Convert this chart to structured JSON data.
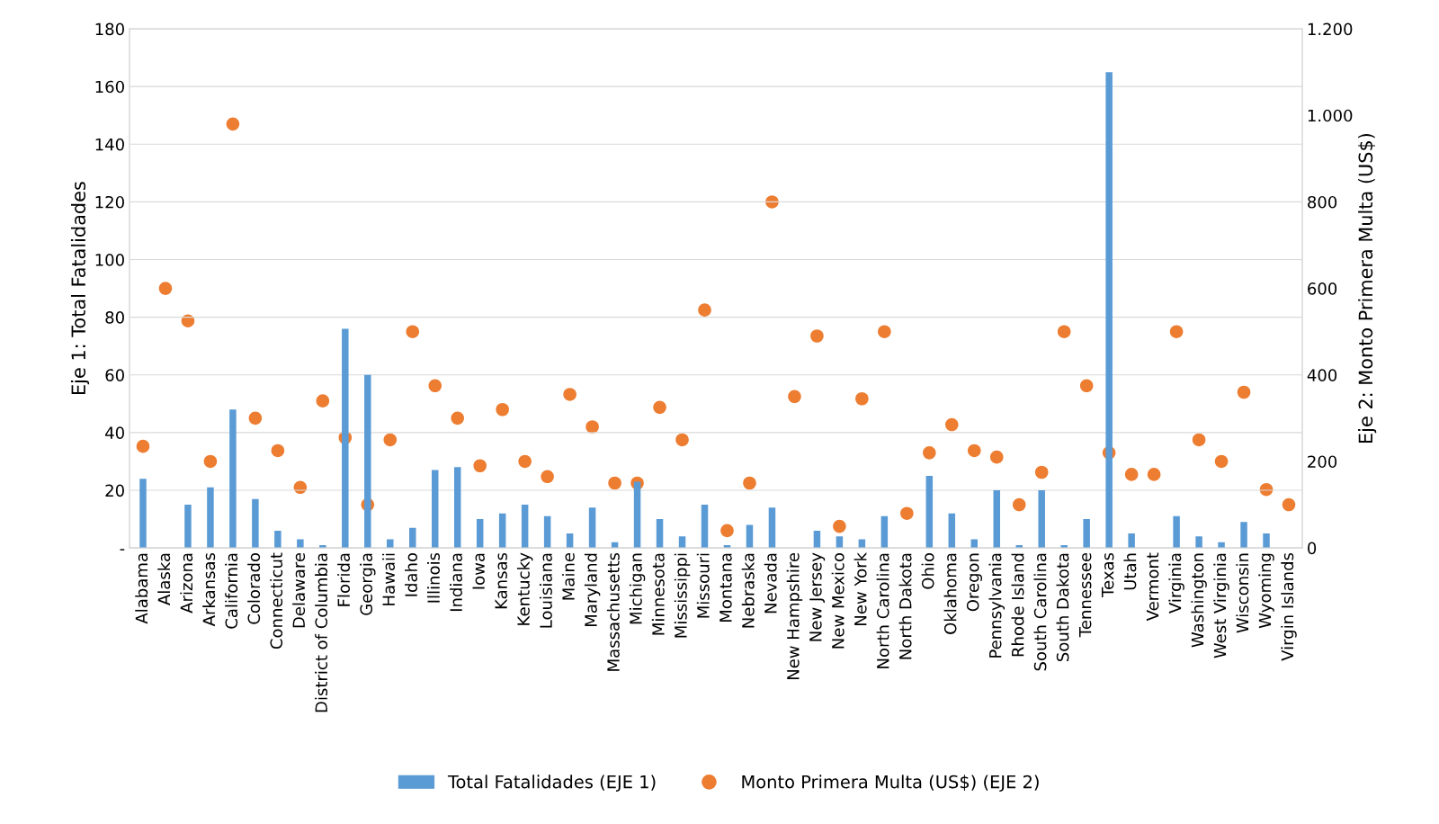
{
  "chart_data": {
    "type": "bar",
    "ylabel": "Eje 1: Total Fatalidades",
    "y2label": "Eje 2: Monto Primera Multa (US$)",
    "categories": [
      "Alabama",
      "Alaska",
      "Arizona",
      "Arkansas",
      "California",
      "Colorado",
      "Connecticut",
      "Delaware",
      "District of Columbia",
      "Florida",
      "Georgia",
      "Hawaii",
      "Idaho",
      "Illinois",
      "Indiana",
      "Iowa",
      "Kansas",
      "Kentucky",
      "Louisiana",
      "Maine",
      "Maryland",
      "Massachusetts",
      "Michigan",
      "Minnesota",
      "Mississippi",
      "Missouri",
      "Montana",
      "Nebraska",
      "Nevada",
      "New Hampshire",
      "New Jersey",
      "New Mexico",
      "New York",
      "North Carolina",
      "North Dakota",
      "Ohio",
      "Oklahoma",
      "Oregon",
      "Pennsylvania",
      "Rhode Island",
      "South Carolina",
      "South Dakota",
      "Tennessee",
      "Texas",
      "Utah",
      "Vermont",
      "Virginia",
      "Washington",
      "West Virginia",
      "Wisconsin",
      "Wyoming",
      "Virgin Islands"
    ],
    "series": [
      {
        "name": "Total Fatalidades (EJE 1)",
        "color": "#5b9bd5",
        "values": [
          24,
          0,
          15,
          21,
          48,
          17,
          6,
          3,
          1,
          76,
          60,
          3,
          7,
          27,
          28,
          10,
          12,
          15,
          11,
          5,
          14,
          2,
          23,
          10,
          4,
          15,
          1,
          8,
          14,
          0,
          6,
          4,
          3,
          11,
          0,
          25,
          12,
          3,
          20,
          1,
          20,
          1,
          10,
          165,
          5,
          0,
          11,
          4,
          2,
          9,
          5,
          0
        ]
      },
      {
        "name": "Monto Primera Multa (US$) (EJE 2)",
        "type": "scatter",
        "axis": "y2",
        "marker": "circle",
        "color": "#ed7d31",
        "values": [
          235,
          600,
          525,
          200,
          980,
          300,
          225,
          140,
          340,
          255,
          100,
          250,
          500,
          375,
          300,
          190,
          320,
          200,
          165,
          355,
          280,
          150,
          150,
          325,
          250,
          550,
          40,
          150,
          800,
          350,
          490,
          50,
          345,
          500,
          80,
          220,
          285,
          225,
          210,
          100,
          175,
          500,
          375,
          220,
          170,
          170,
          500,
          250,
          200,
          360,
          135,
          100
        ]
      }
    ],
    "ylim": [
      0,
      180
    ],
    "yticks": [
      {
        "value": 0,
        "label": "-"
      },
      20,
      40,
      60,
      80,
      100,
      120,
      140,
      160,
      180
    ],
    "y2lim": [
      0,
      1200
    ],
    "y2ticks": [
      0,
      200,
      400,
      600,
      800,
      {
        "value": 1000,
        "label": "1.000"
      },
      {
        "value": 1200,
        "label": "1.200"
      }
    ],
    "grid": "y",
    "legend": "bottom"
  }
}
